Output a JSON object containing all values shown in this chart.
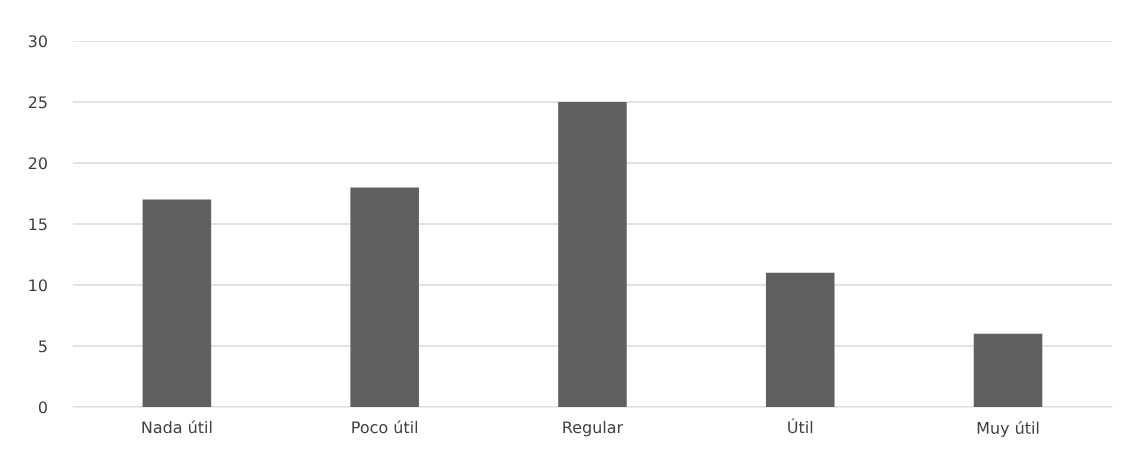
{
  "chart_data": {
    "type": "bar",
    "categories": [
      "Nada útil",
      "Poco útil",
      "Regular",
      "Útil",
      "Muy útil"
    ],
    "values": [
      17,
      18,
      25,
      11,
      6
    ],
    "color": "#606060",
    "ylim": [
      0,
      30
    ],
    "yticks": [
      0,
      5,
      10,
      15,
      20,
      25,
      30
    ],
    "grid": "y",
    "legend": false
  }
}
